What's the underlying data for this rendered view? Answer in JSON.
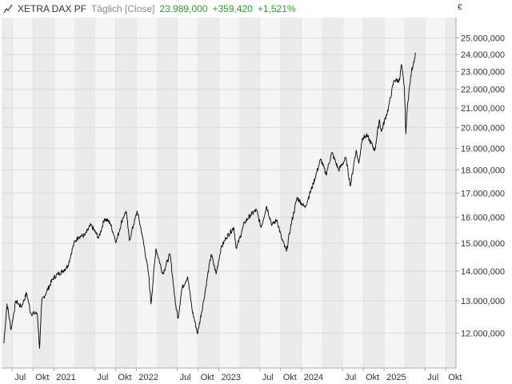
{
  "header": {
    "symbol": "XETRA DAX PF",
    "interval": "Täglich [Close]",
    "last": "23.989,000",
    "change": "+359,420",
    "change_pct": "+1,521%",
    "change_color": "#2e9e2e",
    "icon": "line-chart-icon"
  },
  "currency": "€",
  "chart_data": {
    "type": "line",
    "series": [
      {
        "values": [
          [
            "2020-05-25",
            11700
          ],
          [
            "2020-06-08",
            12900
          ],
          [
            "2020-06-26",
            12100
          ],
          [
            "2020-07-17",
            13000
          ],
          [
            "2020-08-10",
            12800
          ],
          [
            "2020-09-03",
            13250
          ],
          [
            "2020-09-21",
            12600
          ],
          [
            "2020-10-20",
            12600
          ],
          [
            "2020-10-30",
            11550
          ],
          [
            "2020-11-09",
            13000
          ],
          [
            "2020-11-30",
            13300
          ],
          [
            "2020-12-29",
            13750
          ],
          [
            "2021-01-20",
            13900
          ],
          [
            "2021-02-10",
            14000
          ],
          [
            "2021-03-05",
            14200
          ],
          [
            "2021-03-31",
            15000
          ],
          [
            "2021-04-20",
            15250
          ],
          [
            "2021-05-18",
            15300
          ],
          [
            "2021-06-14",
            15700
          ],
          [
            "2021-07-19",
            15200
          ],
          [
            "2021-08-13",
            15950
          ],
          [
            "2021-09-06",
            15800
          ],
          [
            "2021-10-04",
            15050
          ],
          [
            "2021-11-01",
            15950
          ],
          [
            "2021-11-17",
            16250
          ],
          [
            "2021-12-01",
            15100
          ],
          [
            "2022-01-05",
            16250
          ],
          [
            "2022-01-25",
            15400
          ],
          [
            "2022-02-24",
            13900
          ],
          [
            "2022-03-07",
            12900
          ],
          [
            "2022-03-29",
            14800
          ],
          [
            "2022-04-28",
            13900
          ],
          [
            "2022-05-30",
            14600
          ],
          [
            "2022-06-23",
            12900
          ],
          [
            "2022-07-05",
            12450
          ],
          [
            "2022-07-21",
            13400
          ],
          [
            "2022-08-16",
            13800
          ],
          [
            "2022-09-05",
            12700
          ],
          [
            "2022-09-29",
            11980
          ],
          [
            "2022-10-26",
            13000
          ],
          [
            "2022-11-28",
            14600
          ],
          [
            "2022-12-20",
            13900
          ],
          [
            "2023-01-10",
            14800
          ],
          [
            "2023-02-01",
            15200
          ],
          [
            "2023-03-08",
            15600
          ],
          [
            "2023-03-20",
            14800
          ],
          [
            "2023-04-25",
            15800
          ],
          [
            "2023-05-22",
            16100
          ],
          [
            "2023-06-16",
            16300
          ],
          [
            "2023-07-07",
            15600
          ],
          [
            "2023-07-31",
            16450
          ],
          [
            "2023-08-24",
            15700
          ],
          [
            "2023-09-15",
            15900
          ],
          [
            "2023-10-05",
            15200
          ],
          [
            "2023-10-27",
            14700
          ],
          [
            "2023-11-14",
            15600
          ],
          [
            "2023-12-13",
            16800
          ],
          [
            "2024-01-17",
            16400
          ],
          [
            "2024-02-23",
            17400
          ],
          [
            "2024-03-27",
            18500
          ],
          [
            "2024-04-19",
            17800
          ],
          [
            "2024-05-15",
            18800
          ],
          [
            "2024-06-14",
            18000
          ],
          [
            "2024-07-16",
            18550
          ],
          [
            "2024-08-05",
            17300
          ],
          [
            "2024-08-30",
            18900
          ],
          [
            "2024-09-11",
            18300
          ],
          [
            "2024-09-27",
            19500
          ],
          [
            "2024-10-18",
            19600
          ],
          [
            "2024-11-21",
            18900
          ],
          [
            "2024-12-11",
            20400
          ],
          [
            "2024-12-20",
            19800
          ],
          [
            "2025-01-20",
            21000
          ],
          [
            "2025-02-14",
            22500
          ],
          [
            "2025-03-11",
            22500
          ],
          [
            "2025-03-18",
            23400
          ],
          [
            "2025-03-31",
            22200
          ],
          [
            "2025-04-07",
            19700
          ],
          [
            "2025-04-15",
            21250
          ],
          [
            "2025-05-02",
            23000
          ],
          [
            "2025-05-16",
            23800
          ],
          [
            "2025-05-21",
            24100
          ]
        ]
      }
    ],
    "x_ticks": [
      "Jul",
      "Okt",
      "2021",
      "Jul",
      "Okt",
      "2022",
      "Jul",
      "Okt",
      "2023",
      "Jul",
      "Okt",
      "2024",
      "Jul",
      "Okt",
      "2025",
      "Jul",
      "Okt"
    ],
    "y_ticks": [
      "12.000,000",
      "13.000,000",
      "14.000,000",
      "15.000,000",
      "16.000,000",
      "17.000,000",
      "18.000,000",
      "19.000,000",
      "20.000,000",
      "21.000,000",
      "22.000,000",
      "23.000,000",
      "24.000,000",
      "25.000,000"
    ],
    "y_scale": "log",
    "ylim": [
      11000,
      26300
    ],
    "xlim": [
      "2020-05-15",
      "2025-11-15"
    ],
    "grid": true,
    "colors": {
      "line": "#000000",
      "band_dark": "#ebebeb",
      "band_light": "#f5f5f5",
      "grid": "#dadada",
      "axis": "#aaaaaa",
      "text": "#333333"
    }
  }
}
